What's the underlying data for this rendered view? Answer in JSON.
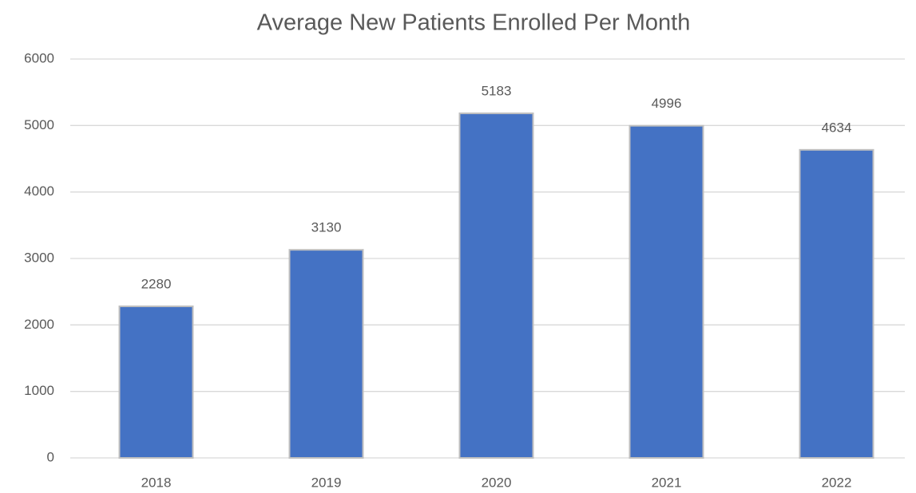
{
  "chart_data": {
    "type": "bar",
    "title": "Average New Patients Enrolled Per Month",
    "categories": [
      "2018",
      "2019",
      "2020",
      "2021",
      "2022"
    ],
    "values": [
      2280,
      3130,
      5183,
      4996,
      4634
    ],
    "color": "#4472c4",
    "ylim": [
      0,
      6000
    ],
    "yticks": [
      0,
      1000,
      2000,
      3000,
      4000,
      5000,
      6000
    ],
    "grid": true,
    "data_labels": true
  }
}
